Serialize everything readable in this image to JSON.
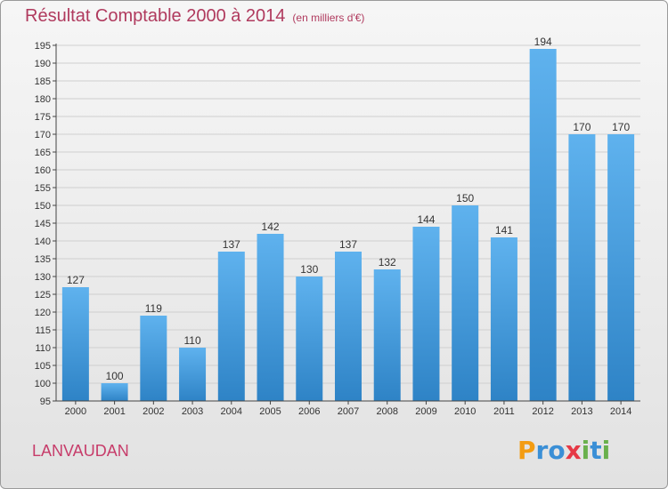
{
  "title": "Résultat Comptable 2000 à 2014",
  "subtitle": "(en milliers d'€)",
  "location": "LANVAUDAN",
  "logo": {
    "letters": [
      "P",
      "r",
      "o",
      "x",
      "i",
      "t",
      "i"
    ],
    "colors": [
      "#f39c12",
      "#3a8fd6",
      "#3a8fd6",
      "#e63946",
      "#6ab04c",
      "#3a8fd6",
      "#6ab04c"
    ]
  },
  "colors": {
    "bar_light": "#5fb2ee",
    "bar_dark": "#2e83c6",
    "title": "#b03a5e"
  },
  "chart_data": {
    "type": "bar",
    "categories": [
      "2000",
      "2001",
      "2002",
      "2003",
      "2004",
      "2005",
      "2006",
      "2007",
      "2008",
      "2009",
      "2010",
      "2011",
      "2012",
      "2013",
      "2014"
    ],
    "values": [
      127,
      100,
      119,
      110,
      137,
      142,
      130,
      137,
      132,
      144,
      150,
      141,
      194,
      170,
      170
    ],
    "ylim": [
      95,
      195
    ],
    "yticks": [
      95,
      100,
      105,
      110,
      115,
      120,
      125,
      130,
      135,
      140,
      145,
      150,
      155,
      160,
      165,
      170,
      175,
      180,
      185,
      190,
      195
    ],
    "grid": true
  }
}
